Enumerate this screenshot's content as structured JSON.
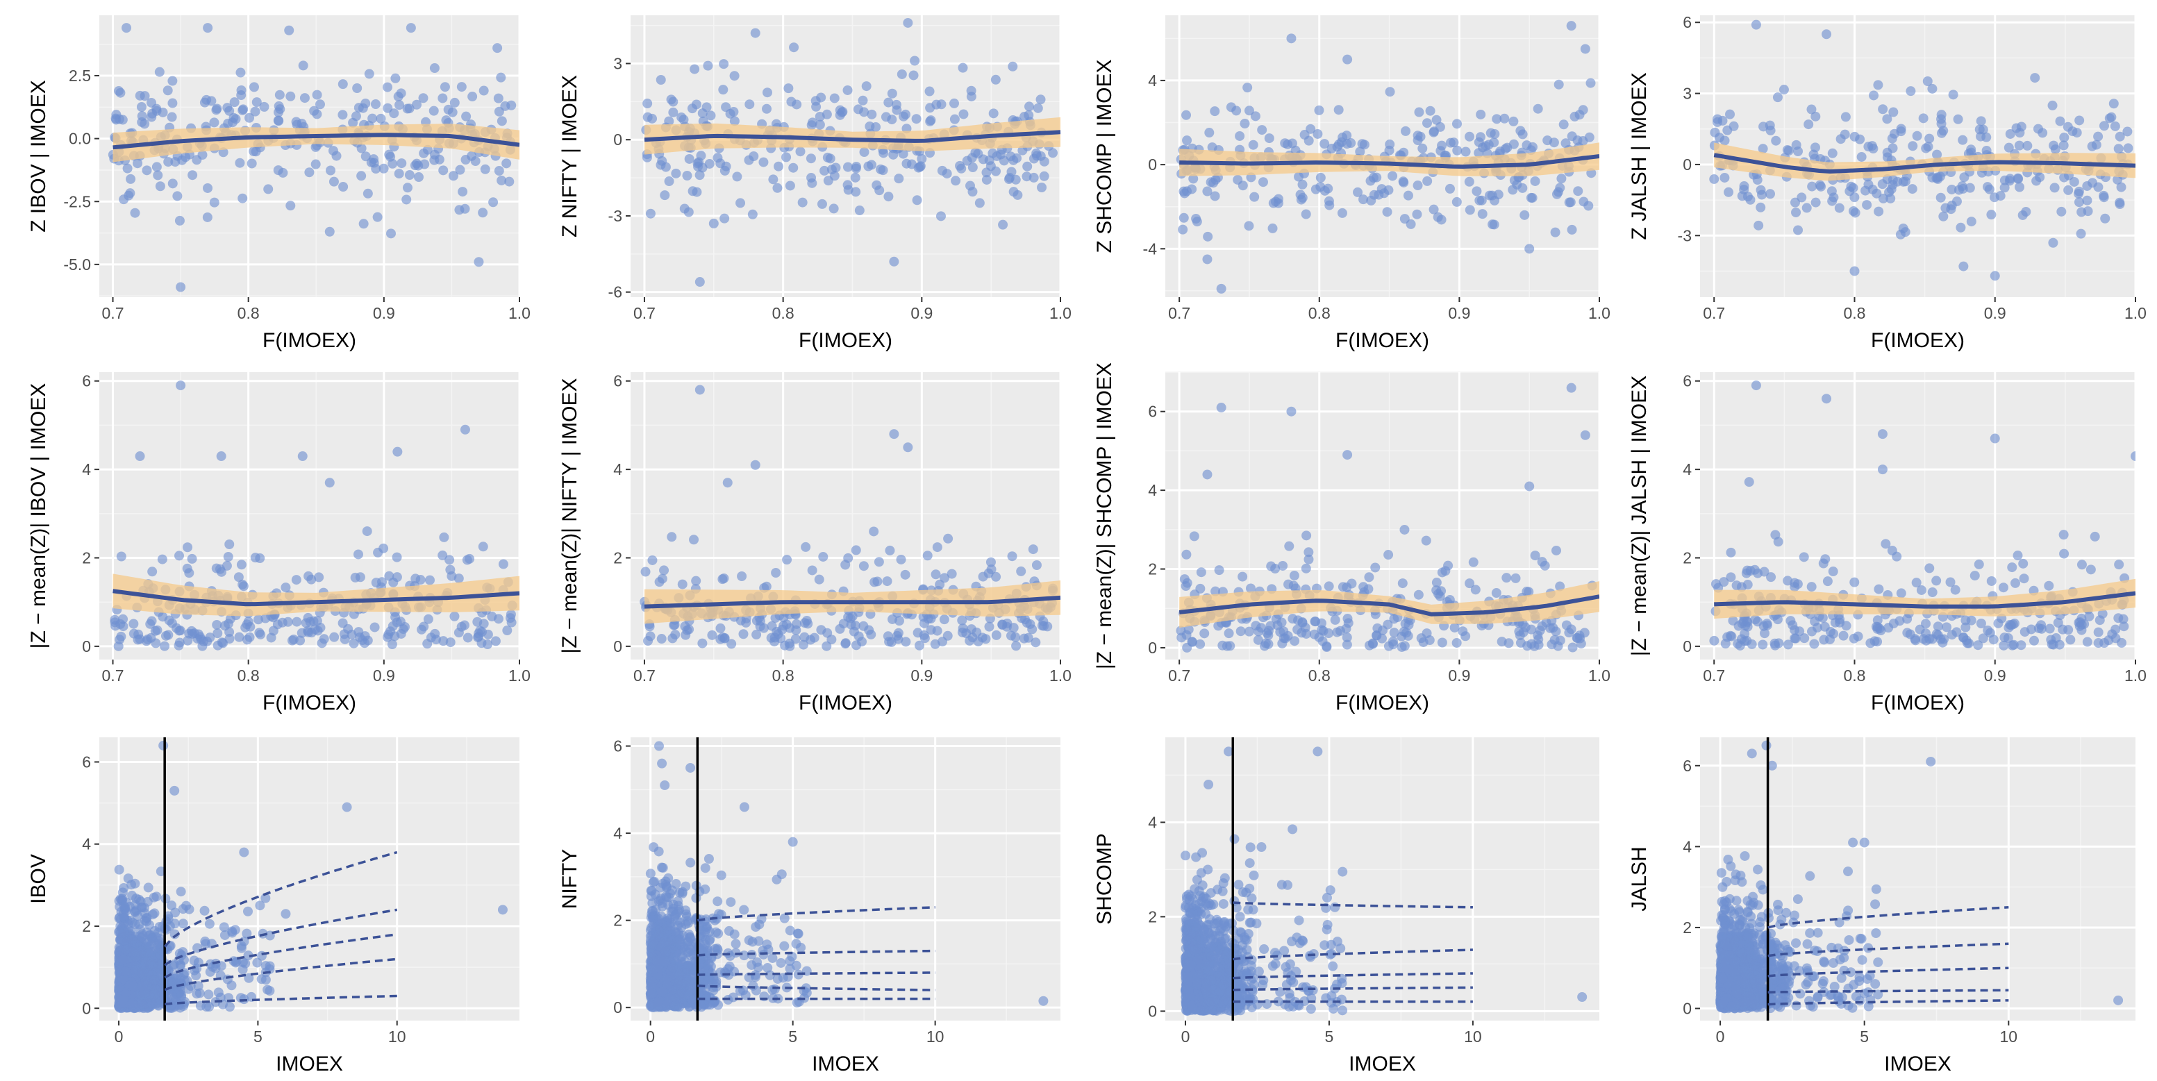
{
  "figure": {
    "colors": {
      "panel_bg": "#ebebeb",
      "grid_major": "#ffffff",
      "grid_minor": "#f4f4f4",
      "points": "#6f8fd1",
      "smooth_line": "#3c5297",
      "ribbon": "#f6c98a",
      "quantile_lines": "#3c5297",
      "threshold_line": "#000000"
    }
  },
  "chart_data": [
    {
      "id": "r1c1",
      "type": "scatter",
      "smooth": true,
      "xlabel": "F(IMOEX)",
      "ylabel": "Z  IBOV | IMOEX",
      "xlim": [
        0.69,
        1.0
      ],
      "ylim": [
        -6.3,
        4.9
      ],
      "xticks": [
        0.7,
        0.8,
        0.9,
        1.0
      ],
      "xtick_labels": [
        "0.7",
        "0.8",
        "0.9",
        "1.0"
      ],
      "yticks": [
        -5,
        -2.5,
        0,
        2.5
      ],
      "ytick_labels": [
        "-5.0",
        "-2.5",
        "0.0",
        "2.5"
      ],
      "point_spread": 1.3,
      "outliers": [
        [
          0.71,
          4.4
        ],
        [
          0.77,
          4.4
        ],
        [
          0.83,
          4.3
        ],
        [
          0.92,
          4.4
        ],
        [
          0.75,
          -5.9
        ],
        [
          0.97,
          -4.9
        ],
        [
          0.86,
          -3.7
        ]
      ],
      "smooth_curve": {
        "x": [
          0.7,
          0.75,
          0.8,
          0.85,
          0.9,
          0.95,
          1.0
        ],
        "y": [
          -0.35,
          -0.1,
          0.05,
          0.1,
          0.15,
          0.1,
          -0.25
        ]
      },
      "ribbon_halfwidth": 0.45
    },
    {
      "id": "r1c2",
      "type": "scatter",
      "smooth": true,
      "xlabel": "F(IMOEX)",
      "ylabel": "Z  NIFTY | IMOEX",
      "xlim": [
        0.69,
        1.0
      ],
      "ylim": [
        -6.2,
        4.9
      ],
      "xticks": [
        0.7,
        0.8,
        0.9,
        1.0
      ],
      "xtick_labels": [
        "0.7",
        "0.8",
        "0.9",
        "1.0"
      ],
      "yticks": [
        -6,
        -3,
        0,
        3
      ],
      "ytick_labels": [
        "-6",
        "-3",
        "0",
        "3"
      ],
      "point_spread": 1.3,
      "outliers": [
        [
          0.89,
          4.6
        ],
        [
          0.74,
          -5.6
        ],
        [
          0.88,
          -4.8
        ],
        [
          0.78,
          4.2
        ],
        [
          0.75,
          -3.3
        ]
      ],
      "smooth_curve": {
        "x": [
          0.7,
          0.75,
          0.8,
          0.85,
          0.9,
          0.95,
          1.0
        ],
        "y": [
          0.0,
          0.15,
          0.1,
          0.0,
          -0.05,
          0.15,
          0.3
        ]
      },
      "ribbon_halfwidth": 0.45
    },
    {
      "id": "r1c3",
      "type": "scatter",
      "smooth": true,
      "xlabel": "F(IMOEX)",
      "ylabel": "Z  SHCOMP | IMOEX",
      "xlim": [
        0.69,
        1.0
      ],
      "ylim": [
        -6.3,
        7.1
      ],
      "xticks": [
        0.7,
        0.8,
        0.9,
        1.0
      ],
      "xtick_labels": [
        "0.7",
        "0.8",
        "0.9",
        "1.0"
      ],
      "yticks": [
        -4,
        0,
        4
      ],
      "ytick_labels": [
        "-4",
        "0",
        "4"
      ],
      "point_spread": 1.4,
      "outliers": [
        [
          0.98,
          6.6
        ],
        [
          0.99,
          5.5
        ],
        [
          0.78,
          6.0
        ],
        [
          0.73,
          -5.9
        ],
        [
          0.82,
          5.0
        ],
        [
          0.95,
          -4.0
        ],
        [
          0.72,
          -4.5
        ]
      ],
      "smooth_curve": {
        "x": [
          0.7,
          0.75,
          0.8,
          0.85,
          0.9,
          0.95,
          1.0
        ],
        "y": [
          0.1,
          0.05,
          0.1,
          0.05,
          -0.1,
          0.0,
          0.4
        ]
      },
      "ribbon_halfwidth": 0.5
    },
    {
      "id": "r1c4",
      "type": "scatter",
      "smooth": true,
      "xlabel": "F(IMOEX)",
      "ylabel": "Z  JALSH | IMOEX",
      "xlim": [
        0.69,
        1.0
      ],
      "ylim": [
        -5.6,
        6.3
      ],
      "xticks": [
        0.7,
        0.8,
        0.9,
        1.0
      ],
      "xtick_labels": [
        "0.7",
        "0.8",
        "0.9",
        "1.0"
      ],
      "yticks": [
        -3,
        0,
        3,
        6
      ],
      "ytick_labels": [
        "-3",
        "0",
        "3",
        "6"
      ],
      "point_spread": 1.3,
      "outliers": [
        [
          0.73,
          5.9
        ],
        [
          0.78,
          5.5
        ],
        [
          0.8,
          -4.5
        ],
        [
          0.9,
          -4.7
        ],
        [
          0.84,
          3.1
        ]
      ],
      "smooth_curve": {
        "x": [
          0.7,
          0.75,
          0.78,
          0.82,
          0.86,
          0.9,
          0.95,
          1.0
        ],
        "y": [
          0.4,
          -0.1,
          -0.3,
          -0.2,
          0.0,
          0.1,
          0.05,
          -0.05
        ]
      },
      "ribbon_halfwidth": 0.4
    },
    {
      "id": "r2c1",
      "type": "scatter",
      "smooth": true,
      "xlabel": "F(IMOEX)",
      "ylabel": "|Z − mean(Z)|   IBOV | IMOEX",
      "xlim": [
        0.69,
        1.0
      ],
      "ylim": [
        -0.3,
        6.2
      ],
      "xticks": [
        0.7,
        0.8,
        0.9,
        1.0
      ],
      "xtick_labels": [
        "0.7",
        "0.8",
        "0.9",
        "1.0"
      ],
      "yticks": [
        0,
        2,
        4,
        6
      ],
      "ytick_labels": [
        "0",
        "2",
        "4",
        "6"
      ],
      "point_spread": 1.0,
      "outliers": [
        [
          0.75,
          5.9
        ],
        [
          0.72,
          4.3
        ],
        [
          0.78,
          4.3
        ],
        [
          0.84,
          4.3
        ],
        [
          0.91,
          4.4
        ],
        [
          0.96,
          4.9
        ],
        [
          0.86,
          3.7
        ]
      ],
      "smooth_curve": {
        "x": [
          0.7,
          0.75,
          0.8,
          0.85,
          0.9,
          0.95,
          1.0
        ],
        "y": [
          1.25,
          1.05,
          0.95,
          1.0,
          1.05,
          1.1,
          1.2
        ]
      },
      "ribbon_halfwidth": 0.3
    },
    {
      "id": "r2c2",
      "type": "scatter",
      "smooth": true,
      "xlabel": "F(IMOEX)",
      "ylabel": "|Z − mean(Z)|   NIFTY | IMOEX",
      "xlim": [
        0.69,
        1.0
      ],
      "ylim": [
        -0.3,
        6.2
      ],
      "xticks": [
        0.7,
        0.8,
        0.9,
        1.0
      ],
      "xtick_labels": [
        "0.7",
        "0.8",
        "0.9",
        "1.0"
      ],
      "yticks": [
        0,
        2,
        4,
        6
      ],
      "ytick_labels": [
        "0",
        "2",
        "4",
        "6"
      ],
      "point_spread": 1.0,
      "outliers": [
        [
          0.74,
          5.8
        ],
        [
          0.88,
          4.8
        ],
        [
          0.89,
          4.5
        ],
        [
          0.78,
          4.1
        ],
        [
          0.76,
          3.7
        ]
      ],
      "smooth_curve": {
        "x": [
          0.7,
          0.75,
          0.8,
          0.85,
          0.9,
          0.95,
          1.0
        ],
        "y": [
          0.9,
          0.95,
          1.0,
          1.0,
          1.0,
          1.0,
          1.1
        ]
      },
      "ribbon_halfwidth": 0.3
    },
    {
      "id": "r2c3",
      "type": "scatter",
      "smooth": true,
      "xlabel": "F(IMOEX)",
      "ylabel": "|Z − mean(Z)|   SHCOMP | IMOEX",
      "xlim": [
        0.69,
        1.0
      ],
      "ylim": [
        -0.3,
        7.0
      ],
      "xticks": [
        0.7,
        0.8,
        0.9,
        1.0
      ],
      "xtick_labels": [
        "0.7",
        "0.8",
        "0.9",
        "1.0"
      ],
      "yticks": [
        0,
        2,
        4,
        6
      ],
      "ytick_labels": [
        "0",
        "2",
        "4",
        "6"
      ],
      "point_spread": 1.1,
      "outliers": [
        [
          0.98,
          6.6
        ],
        [
          0.73,
          6.1
        ],
        [
          0.78,
          6.0
        ],
        [
          0.99,
          5.4
        ],
        [
          0.82,
          4.9
        ],
        [
          0.72,
          4.4
        ],
        [
          0.95,
          4.1
        ]
      ],
      "smooth_curve": {
        "x": [
          0.7,
          0.75,
          0.8,
          0.85,
          0.88,
          0.92,
          0.96,
          1.0
        ],
        "y": [
          0.9,
          1.1,
          1.2,
          1.1,
          0.85,
          0.9,
          1.05,
          1.3
        ]
      },
      "ribbon_halfwidth": 0.3
    },
    {
      "id": "r2c4",
      "type": "scatter",
      "smooth": true,
      "xlabel": "F(IMOEX)",
      "ylabel": "|Z − mean(Z)|   JALSH | IMOEX",
      "xlim": [
        0.69,
        1.0
      ],
      "ylim": [
        -0.3,
        6.2
      ],
      "xticks": [
        0.7,
        0.8,
        0.9,
        1.0
      ],
      "xtick_labels": [
        "0.7",
        "0.8",
        "0.9",
        "1.0"
      ],
      "yticks": [
        0,
        2,
        4,
        6
      ],
      "ytick_labels": [
        "0",
        "2",
        "4",
        "6"
      ],
      "point_spread": 1.0,
      "outliers": [
        [
          0.73,
          5.9
        ],
        [
          0.78,
          5.6
        ],
        [
          0.82,
          4.8
        ],
        [
          0.9,
          4.7
        ],
        [
          1.0,
          4.3
        ],
        [
          0.82,
          4.0
        ]
      ],
      "smooth_curve": {
        "x": [
          0.7,
          0.75,
          0.8,
          0.85,
          0.9,
          0.95,
          1.0
        ],
        "y": [
          0.95,
          1.0,
          0.95,
          0.9,
          0.9,
          1.0,
          1.2
        ]
      },
      "ribbon_halfwidth": 0.25
    },
    {
      "id": "r3c1",
      "type": "scatter",
      "quantiles": true,
      "xlabel": "IMOEX",
      "ylabel": "IBOV",
      "xlim": [
        -0.7,
        14.4
      ],
      "ylim": [
        -0.3,
        6.6
      ],
      "xticks": [
        0,
        5,
        10
      ],
      "xtick_labels": [
        "0",
        "5",
        "10"
      ],
      "yticks": [
        0,
        2,
        4,
        6
      ],
      "ytick_labels": [
        "0",
        "2",
        "4",
        "6"
      ],
      "threshold": 1.65,
      "outliers": [
        [
          13.8,
          2.4
        ],
        [
          8.2,
          4.9
        ],
        [
          2.0,
          5.3
        ],
        [
          1.6,
          6.4
        ],
        [
          4.5,
          3.8
        ],
        [
          6.0,
          2.3
        ]
      ],
      "quantile_lines": [
        {
          "y_start": 0.1,
          "y_end": 0.3
        },
        {
          "y_start": 0.45,
          "y_end": 1.2
        },
        {
          "y_start": 0.75,
          "y_end": 1.8
        },
        {
          "y_start": 1.05,
          "y_end": 2.4
        },
        {
          "y_start": 1.5,
          "y_end": 3.8
        }
      ]
    },
    {
      "id": "r3c2",
      "type": "scatter",
      "quantiles": true,
      "xlabel": "IMOEX",
      "ylabel": "NIFTY",
      "xlim": [
        -0.7,
        14.4
      ],
      "ylim": [
        -0.3,
        6.2
      ],
      "xticks": [
        0,
        5,
        10
      ],
      "xtick_labels": [
        "0",
        "5",
        "10"
      ],
      "yticks": [
        0,
        2,
        4,
        6
      ],
      "ytick_labels": [
        "0",
        "2",
        "4",
        "6"
      ],
      "threshold": 1.65,
      "outliers": [
        [
          13.8,
          0.15
        ],
        [
          0.3,
          6.0
        ],
        [
          0.4,
          5.6
        ],
        [
          0.5,
          5.1
        ],
        [
          1.4,
          5.5
        ],
        [
          3.3,
          4.6
        ],
        [
          5.0,
          3.8
        ]
      ],
      "quantile_lines": [
        {
          "y_start": 0.2,
          "y_end": 0.2
        },
        {
          "y_start": 0.5,
          "y_end": 0.4
        },
        {
          "y_start": 0.75,
          "y_end": 0.8
        },
        {
          "y_start": 1.2,
          "y_end": 1.3
        },
        {
          "y_start": 2.0,
          "y_end": 2.3
        }
      ]
    },
    {
      "id": "r3c3",
      "type": "scatter",
      "quantiles": true,
      "xlabel": "IMOEX",
      "ylabel": "SHCOMP",
      "xlim": [
        -0.7,
        14.4
      ],
      "ylim": [
        -0.2,
        5.8
      ],
      "xticks": [
        0,
        5,
        10
      ],
      "xtick_labels": [
        "0",
        "5",
        "10"
      ],
      "yticks": [
        0,
        2,
        4
      ],
      "ytick_labels": [
        "0",
        "2",
        "4"
      ],
      "threshold": 1.65,
      "outliers": [
        [
          13.8,
          0.3
        ],
        [
          1.5,
          5.5
        ],
        [
          4.6,
          5.5
        ],
        [
          0.8,
          4.8
        ],
        [
          5.2,
          2.2
        ]
      ],
      "quantile_lines": [
        {
          "y_start": 0.2,
          "y_end": 0.2
        },
        {
          "y_start": 0.45,
          "y_end": 0.5
        },
        {
          "y_start": 0.7,
          "y_end": 0.8
        },
        {
          "y_start": 1.1,
          "y_end": 1.3
        },
        {
          "y_start": 2.3,
          "y_end": 2.2
        }
      ]
    },
    {
      "id": "r3c4",
      "type": "scatter",
      "quantiles": true,
      "xlabel": "IMOEX",
      "ylabel": "JALSH",
      "xlim": [
        -0.7,
        14.4
      ],
      "ylim": [
        -0.3,
        6.7
      ],
      "xticks": [
        0,
        5,
        10
      ],
      "xtick_labels": [
        "0",
        "5",
        "10"
      ],
      "yticks": [
        0,
        2,
        4,
        6
      ],
      "ytick_labels": [
        "0",
        "2",
        "4",
        "6"
      ],
      "threshold": 1.65,
      "outliers": [
        [
          13.8,
          0.2
        ],
        [
          7.3,
          6.1
        ],
        [
          1.6,
          6.5
        ],
        [
          1.8,
          6.0
        ],
        [
          1.1,
          6.3
        ],
        [
          4.6,
          4.1
        ],
        [
          5.0,
          4.1
        ]
      ],
      "quantile_lines": [
        {
          "y_start": 0.1,
          "y_end": 0.2
        },
        {
          "y_start": 0.4,
          "y_end": 0.45
        },
        {
          "y_start": 0.8,
          "y_end": 1.0
        },
        {
          "y_start": 1.3,
          "y_end": 1.6
        },
        {
          "y_start": 2.0,
          "y_end": 2.5
        }
      ]
    }
  ]
}
